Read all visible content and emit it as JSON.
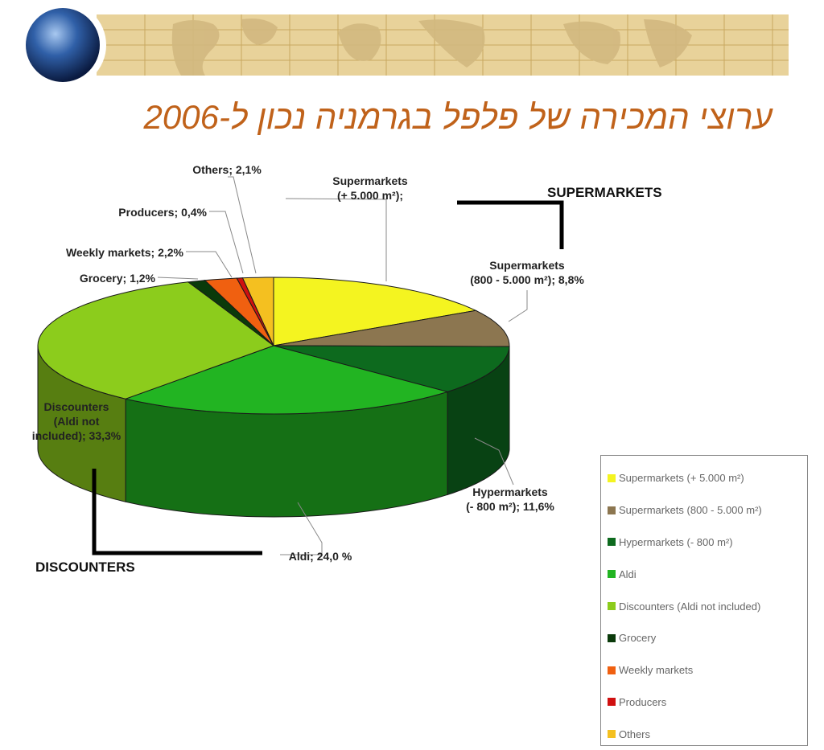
{
  "title": "ערוצי המכירה של פלפל בגרמניה נכון ל-2006",
  "group_labels": {
    "supermarkets": "SUPERMARKETS",
    "discounters": "DISCOUNTERS"
  },
  "colors": {
    "title": "#c0621a",
    "banner_bg": "#e8d29a",
    "banner_lines": "#c8a860"
  },
  "chart_data": {
    "type": "pie",
    "is_3d": true,
    "legend_position": "right",
    "slices": [
      {
        "legend": "Supermarkets (+ 5.000 m²)",
        "label": "Supermarkets\n(+ 5.000 m²);",
        "value": 16.4,
        "color": "#f4f420"
      },
      {
        "legend": "Supermarkets (800 - 5.000 m²)",
        "label": "Supermarkets\n(800 - 5.000 m²); 8,8%",
        "value": 8.8,
        "color": "#8c7650"
      },
      {
        "legend": "Hypermarkets (- 800 m²)",
        "label": "Hypermarkets\n(- 800 m²); 11,6%",
        "value": 11.6,
        "color": "#0d6a1e"
      },
      {
        "legend": "Aldi",
        "label": "Aldi; 24,0 %",
        "value": 24.0,
        "color": "#22b422"
      },
      {
        "legend": "Discounters (Aldi not included)",
        "label": "Discounters\n(Aldi not\nincluded); 33,3%",
        "value": 33.3,
        "color": "#8ccc1c"
      },
      {
        "legend": "Grocery",
        "label": "Grocery; 1,2%",
        "value": 1.2,
        "color": "#0a3a0a"
      },
      {
        "legend": "Weekly markets",
        "label": "Weekly markets; 2,2%",
        "value": 2.2,
        "color": "#f06010"
      },
      {
        "legend": "Producers",
        "label": "Producers; 0,4%",
        "value": 0.4,
        "color": "#d01010"
      },
      {
        "legend": "Others",
        "label": "Others; 2,1%",
        "value": 2.1,
        "color": "#f4c020"
      }
    ]
  }
}
